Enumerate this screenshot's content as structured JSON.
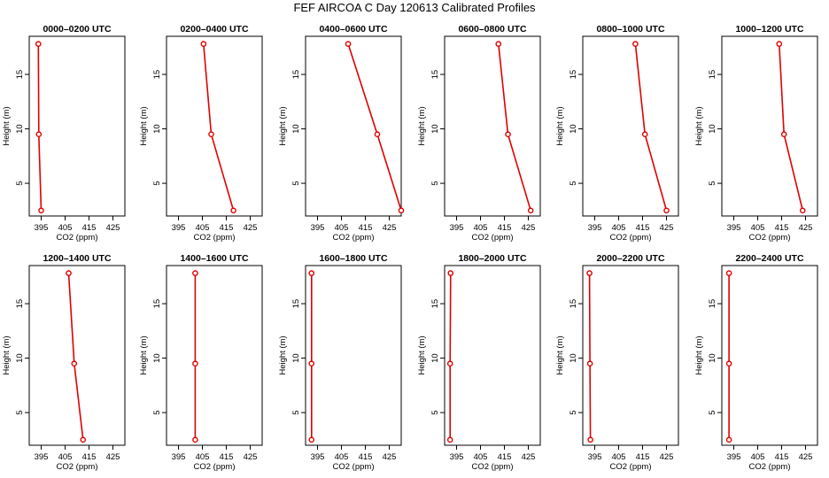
{
  "title": "FEF AIRCOA C  Day 120613  Calibrated Profiles",
  "chart_data": {
    "type": "line",
    "xlabel": "CO2 (ppm)",
    "ylabel": "Height (m)",
    "xlim": [
      390,
      430
    ],
    "ylim": [
      2,
      18.5
    ],
    "xticks": [
      "395",
      "405",
      "415",
      "425"
    ],
    "yticks": [
      "5",
      "10",
      "15"
    ],
    "color": "#e00000",
    "heights": [
      2.5,
      9.5,
      17.8
    ],
    "panels": [
      {
        "title": "0000–0200 UTC",
        "co2": [
          395.0,
          394.0,
          393.8
        ]
      },
      {
        "title": "0200–0400 UTC",
        "co2": [
          418.0,
          408.7,
          405.5
        ]
      },
      {
        "title": "0400–0600 UTC",
        "co2": [
          430.0,
          420.0,
          407.8
        ]
      },
      {
        "title": "0600–0800 UTC",
        "co2": [
          426.0,
          416.5,
          412.5
        ]
      },
      {
        "title": "0800–1000 UTC",
        "co2": [
          425.0,
          416.0,
          412.0
        ]
      },
      {
        "title": "1000–1200 UTC",
        "co2": [
          423.8,
          416.0,
          414.0
        ]
      },
      {
        "title": "1200–1400 UTC",
        "co2": [
          412.5,
          408.8,
          406.5
        ]
      },
      {
        "title": "1400–1600 UTC",
        "co2": [
          402.0,
          402.0,
          402.0
        ]
      },
      {
        "title": "1600–1800 UTC",
        "co2": [
          392.5,
          392.5,
          392.5
        ]
      },
      {
        "title": "1800–2000 UTC",
        "co2": [
          392.3,
          392.3,
          392.5
        ]
      },
      {
        "title": "2000–2200 UTC",
        "co2": [
          393.2,
          393.0,
          392.8
        ]
      },
      {
        "title": "2200–2400 UTC",
        "co2": [
          393.0,
          393.0,
          393.0
        ]
      }
    ]
  }
}
